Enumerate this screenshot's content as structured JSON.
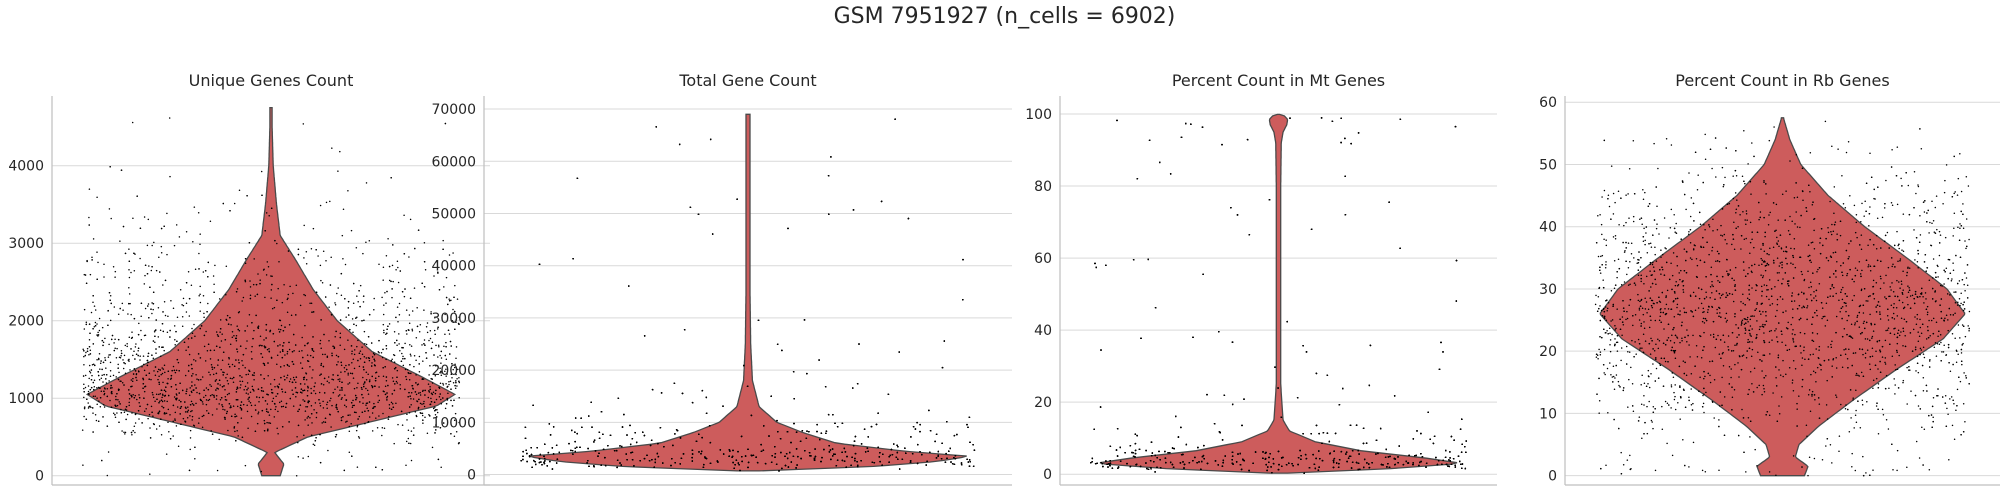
{
  "suptitle": "GSM 7951927 (n_cells = 6902)",
  "colors": {
    "violin": "#cd5c5c",
    "violin_edge": "#4a4a4a",
    "points": "#000000",
    "grid": "#d9d9d9",
    "axis": "#bfbfbf"
  },
  "chart_data": [
    {
      "type": "violin",
      "title": "Unique Genes Count",
      "n_points": 6902,
      "ylim": [
        -120,
        4900
      ],
      "yticks": [
        0,
        1000,
        2000,
        3000,
        4000
      ],
      "tick_labels": [
        "0",
        "1000",
        "2000",
        "3000",
        "4000"
      ],
      "grid": true,
      "jitter_points": true,
      "density_profile": [
        [
          0,
          0.05
        ],
        [
          150,
          0.07
        ],
        [
          300,
          0.02
        ],
        [
          500,
          0.2
        ],
        [
          700,
          0.55
        ],
        [
          900,
          0.9
        ],
        [
          1050,
          1.0
        ],
        [
          1300,
          0.8
        ],
        [
          1600,
          0.55
        ],
        [
          2000,
          0.36
        ],
        [
          2400,
          0.23
        ],
        [
          2800,
          0.13
        ],
        [
          3100,
          0.05
        ],
        [
          3500,
          0.03
        ],
        [
          4000,
          0.012
        ],
        [
          4750,
          0.003
        ]
      ],
      "data_max": 4750
    },
    {
      "type": "violin",
      "title": "Total Gene Count",
      "n_points": 6902,
      "ylim": [
        -2000,
        72500
      ],
      "yticks": [
        0,
        10000,
        20000,
        30000,
        40000,
        50000,
        60000,
        70000
      ],
      "tick_labels": [
        "0",
        "10000",
        "20000",
        "30000",
        "40000",
        "50000",
        "60000",
        "70000"
      ],
      "grid": true,
      "jitter_points": true,
      "density_profile": [
        [
          700,
          0.05
        ],
        [
          1500,
          0.55
        ],
        [
          2500,
          0.85
        ],
        [
          3500,
          1.0
        ],
        [
          4500,
          0.7
        ],
        [
          6000,
          0.4
        ],
        [
          8000,
          0.25
        ],
        [
          10000,
          0.13
        ],
        [
          13000,
          0.05
        ],
        [
          18000,
          0.02
        ],
        [
          25000,
          0.012
        ],
        [
          35000,
          0.009
        ],
        [
          50000,
          0.009
        ],
        [
          69000,
          0.009
        ]
      ],
      "data_max": 69000
    },
    {
      "type": "violin",
      "title": "Percent Count in Mt Genes",
      "n_points": 6902,
      "ylim": [
        -3,
        105
      ],
      "yticks": [
        0,
        20,
        40,
        60,
        80,
        100
      ],
      "tick_labels": [
        "0",
        "20",
        "40",
        "60",
        "80",
        "100"
      ],
      "grid": true,
      "jitter_points": true,
      "density_profile": [
        [
          0.3,
          0.05
        ],
        [
          1.5,
          0.6
        ],
        [
          3,
          1.0
        ],
        [
          4.5,
          0.8
        ],
        [
          6.5,
          0.45
        ],
        [
          9,
          0.2
        ],
        [
          12,
          0.06
        ],
        [
          15,
          0.025
        ],
        [
          25,
          0.012
        ],
        [
          50,
          0.012
        ],
        [
          80,
          0.012
        ],
        [
          92,
          0.015
        ],
        [
          95,
          0.025
        ],
        [
          97,
          0.045
        ],
        [
          98.5,
          0.05
        ],
        [
          99.6,
          0.03
        ]
      ],
      "data_max": 99.9
    },
    {
      "type": "violin",
      "title": "Percent Count in Rb Genes",
      "n_points": 6902,
      "ylim": [
        -1.5,
        61
      ],
      "yticks": [
        0,
        10,
        20,
        30,
        40,
        50,
        60
      ],
      "tick_labels": [
        "0",
        "10",
        "20",
        "30",
        "40",
        "50",
        "60"
      ],
      "grid": true,
      "jitter_points": true,
      "density_profile": [
        [
          0,
          0.12
        ],
        [
          1.5,
          0.14
        ],
        [
          3,
          0.07
        ],
        [
          5,
          0.09
        ],
        [
          8,
          0.2
        ],
        [
          12,
          0.38
        ],
        [
          17,
          0.62
        ],
        [
          22,
          0.88
        ],
        [
          26,
          1.0
        ],
        [
          30,
          0.9
        ],
        [
          35,
          0.68
        ],
        [
          40,
          0.45
        ],
        [
          45,
          0.25
        ],
        [
          50,
          0.1
        ],
        [
          54,
          0.04
        ],
        [
          57.5,
          0.005
        ]
      ],
      "data_max": 57.5
    }
  ]
}
